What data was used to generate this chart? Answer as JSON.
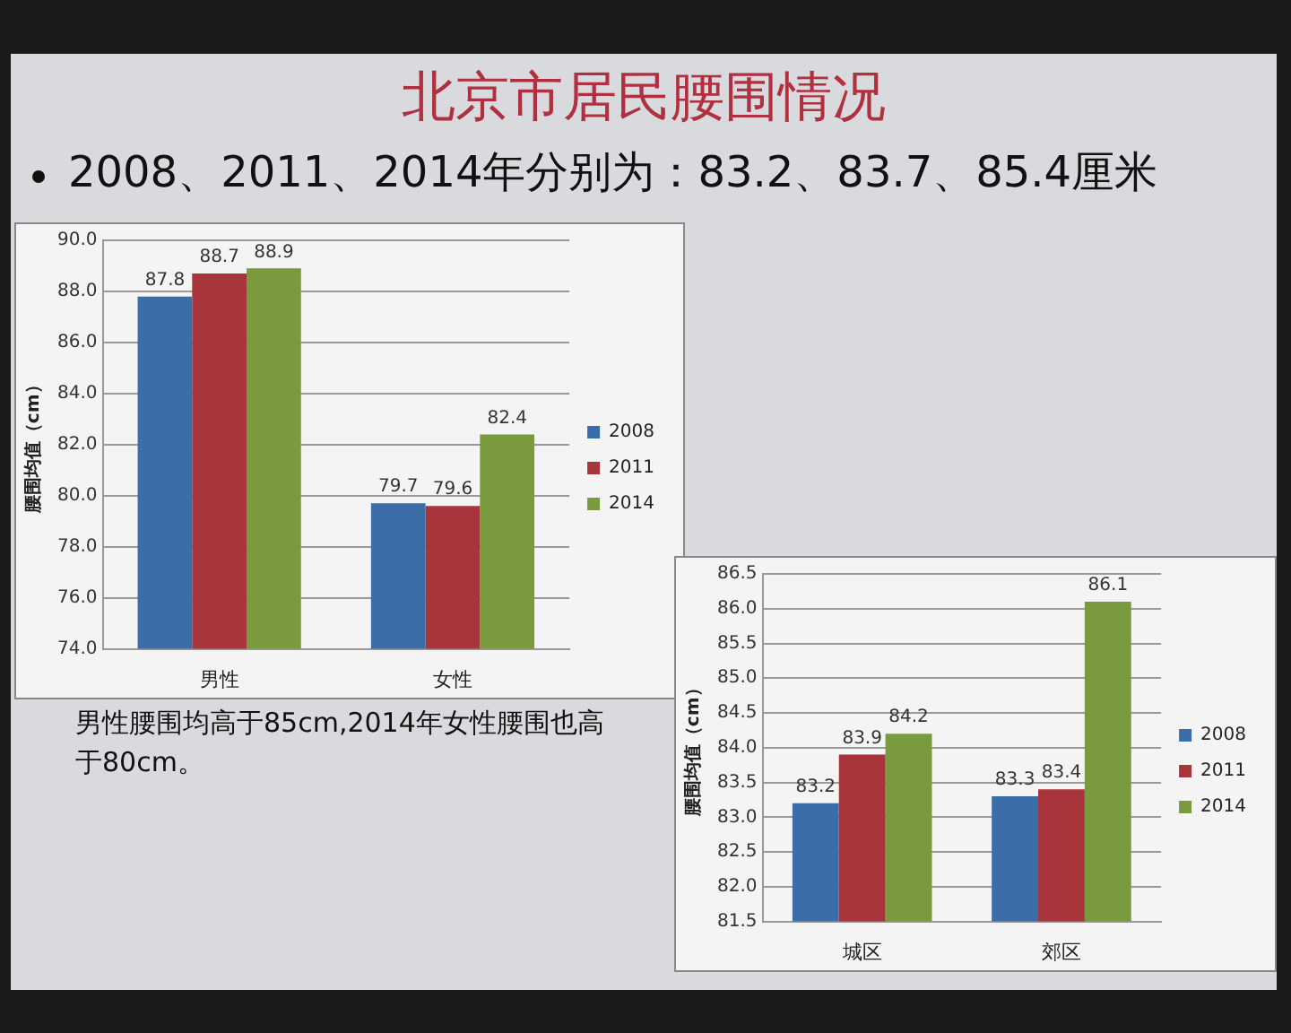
{
  "chart_data": [
    {
      "type": "bar",
      "title": "北京市居民腰围情况",
      "subtitle": "2008、2011、2014年分别为：83.2、83.7、85.4厘米",
      "annotations": [
        "男性腰围均高于85cm,2014年女性腰围也高于80cm。"
      ],
      "ylabel": "腰围均值（cm）",
      "categories": [
        "男性",
        "女性"
      ],
      "series": [
        {
          "name": "2008",
          "color": "#3b6ea8",
          "values": [
            87.8,
            79.7
          ]
        },
        {
          "name": "2011",
          "color": "#a8343c",
          "values": [
            88.7,
            79.6
          ]
        },
        {
          "name": "2014",
          "color": "#7a9a3e",
          "values": [
            88.9,
            82.4
          ]
        }
      ],
      "ylim": [
        74,
        90
      ],
      "yticks": [
        {
          "value": 74,
          "label": "74.0"
        },
        {
          "value": 76,
          "label": "76.0"
        },
        {
          "value": 78,
          "label": "78.0"
        },
        {
          "value": 80,
          "label": "80.0"
        },
        {
          "value": 82,
          "label": "82.0"
        },
        {
          "value": 84,
          "label": "84.0"
        },
        {
          "value": 86,
          "label": "86.0"
        },
        {
          "value": 88,
          "label": "88.0"
        },
        {
          "value": 90,
          "label": "90.0"
        }
      ],
      "grid": "y",
      "legend": "right",
      "data_labels": true
    },
    {
      "type": "bar",
      "ylabel": "腰围均值（cm）",
      "categories": [
        "城区",
        "郊区"
      ],
      "series": [
        {
          "name": "2008",
          "color": "#3b6ea8",
          "values": [
            83.2,
            83.3
          ]
        },
        {
          "name": "2011",
          "color": "#a8343c",
          "values": [
            83.9,
            83.4
          ]
        },
        {
          "name": "2014",
          "color": "#7a9a3e",
          "values": [
            84.2,
            86.1
          ]
        }
      ],
      "ylim": [
        81.5,
        86.5
      ],
      "yticks": [
        {
          "value": 81.5,
          "label": "81.5"
        },
        {
          "value": 82,
          "label": "82.0"
        },
        {
          "value": 82.5,
          "label": "82.5"
        },
        {
          "value": 83,
          "label": "83.0"
        },
        {
          "value": 83.5,
          "label": "83.5"
        },
        {
          "value": 84,
          "label": "84.0"
        },
        {
          "value": 84.5,
          "label": "84.5"
        },
        {
          "value": 85,
          "label": "85.0"
        },
        {
          "value": 85.5,
          "label": "85.5"
        },
        {
          "value": 86,
          "label": "86.0"
        },
        {
          "value": 86.5,
          "label": "86.5"
        }
      ],
      "grid": "y",
      "legend": "right",
      "data_labels": true
    }
  ]
}
